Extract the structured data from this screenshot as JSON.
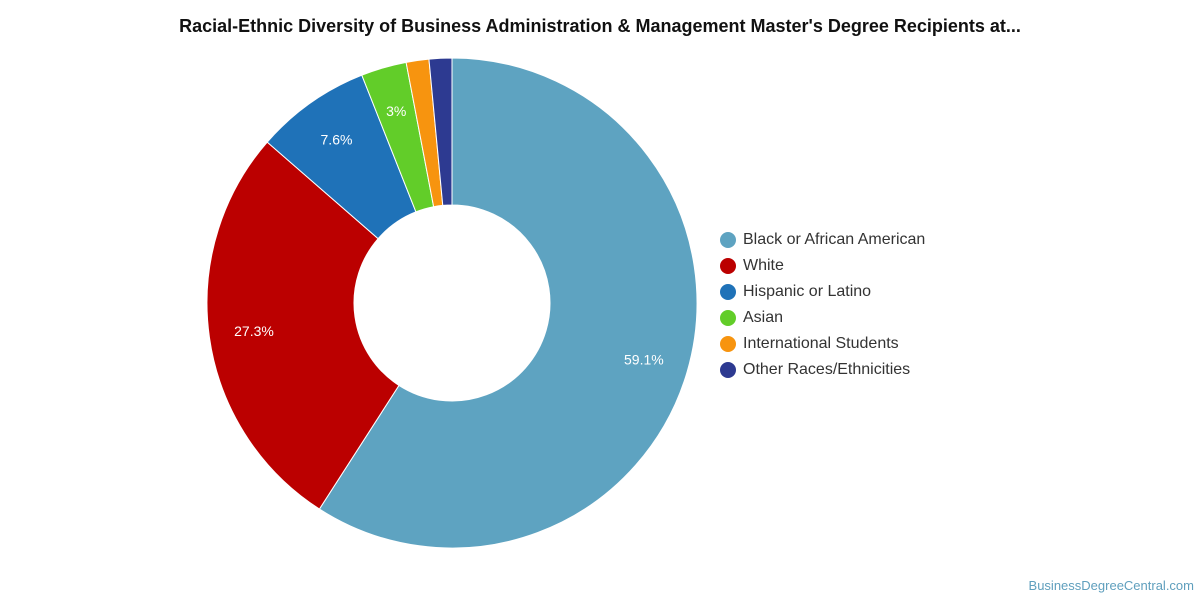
{
  "chart_data": {
    "type": "pie",
    "variant": "donut",
    "title": "Racial-Ethnic Diversity of Business Administration & Management Master's Degree Recipients at...",
    "categories": [
      "Black or African American",
      "White",
      "Hispanic or Latino",
      "Asian",
      "International Students",
      "Other Races/Ethnicities"
    ],
    "values": [
      59.1,
      27.3,
      7.6,
      3.0,
      1.5,
      1.5
    ],
    "data_labels": [
      "59.1%",
      "27.3%",
      "7.6%",
      "3%",
      "",
      ""
    ],
    "colors": [
      "#5ea3c1",
      "#bb0000",
      "#1f72b8",
      "#62cd29",
      "#f7940f",
      "#2d3a91"
    ],
    "legend_position": "right"
  },
  "credit": "BusinessDegreeCentral.com"
}
